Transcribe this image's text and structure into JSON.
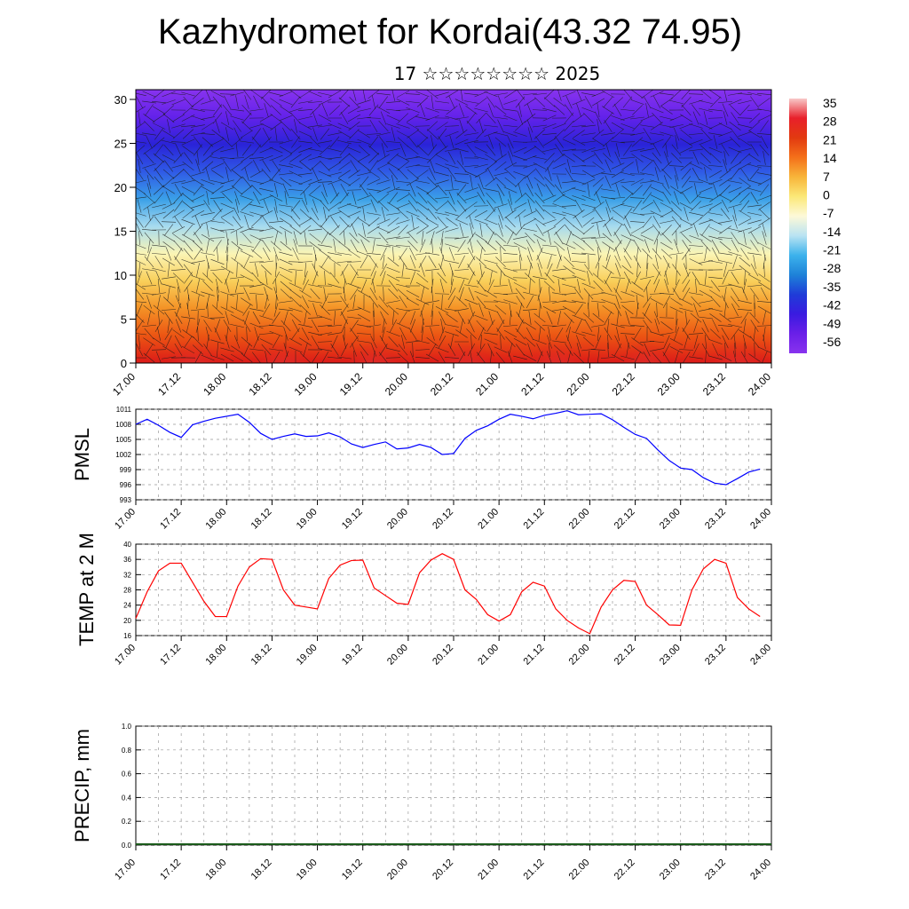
{
  "header": {
    "title": "Kazhydromet for Kordai(43.32 74.95)",
    "subtitle": "17 ☆☆☆☆☆☆☆☆ 2025"
  },
  "x_tick_labels": [
    "17.00",
    "17.12",
    "18.00",
    "18.12",
    "19.00",
    "19.12",
    "20.00",
    "20.12",
    "21.00",
    "21.12",
    "22.00",
    "22.12",
    "23.00",
    "23.12",
    "24.00"
  ],
  "chart_data": [
    {
      "type": "heatmap",
      "description_kind": "temperature cross-section with wind barbs",
      "yticks": [
        0,
        5,
        10,
        15,
        20,
        25,
        30
      ],
      "ylim": [
        0,
        30
      ],
      "colorbar": {
        "labels": [
          "35",
          "28",
          "21",
          "14",
          "7",
          "0",
          "-7",
          "-14",
          "-21",
          "-28",
          "-35",
          "-42",
          "-49",
          "-56"
        ],
        "colors": [
          "#f8c8c8",
          "#e8202a",
          "#e23a10",
          "#f4701a",
          "#f8b53a",
          "#fbe878",
          "#fdf9d8",
          "#b9e3f2",
          "#3cb2ec",
          "#1e82d8",
          "#1f3cd8",
          "#3a1be0",
          "#6a1fe8",
          "#8833ee"
        ]
      },
      "stripe_colors_top_to_bottom": [
        "#8833ee",
        "#6322ea",
        "#2a23d8",
        "#2f5ae6",
        "#3aa0e8",
        "#a7dbef",
        "#fbf5b5",
        "#f9cf5a",
        "#f49226",
        "#ec5513",
        "#dc1a18"
      ]
    },
    {
      "type": "line",
      "ylabel": "PMSL",
      "ylim": [
        993,
        1011
      ],
      "yticks": [
        993,
        996,
        999,
        1002,
        1005,
        1008,
        1011
      ],
      "x_range": [
        0,
        168
      ],
      "x_hours": [
        0,
        3,
        6,
        9,
        12,
        15,
        18,
        21,
        24,
        27,
        30,
        33,
        36,
        39,
        42,
        45,
        48,
        51,
        54,
        57,
        60,
        63,
        66,
        69,
        72,
        75,
        78,
        81,
        84,
        87,
        90,
        93,
        96,
        99,
        102,
        105,
        108,
        111,
        114,
        117,
        120,
        123,
        126,
        129,
        132,
        135,
        138,
        141,
        144,
        147,
        150,
        153,
        156,
        159,
        162,
        165
      ],
      "series": [
        {
          "color": "#0000ff",
          "values": [
            1008.0,
            1009.0,
            1007.8,
            1006.4,
            1005.4,
            1007.9,
            1008.6,
            1009.2,
            1009.6,
            1010.0,
            1008.4,
            1006.2,
            1005.0,
            1005.6,
            1006.1,
            1005.6,
            1005.7,
            1006.3,
            1005.5,
            1004.1,
            1003.4,
            1004.0,
            1004.5,
            1003.1,
            1003.3,
            1004.0,
            1003.4,
            1002.0,
            1002.2,
            1005.2,
            1006.8,
            1007.7,
            1009.0,
            1010.0,
            1009.6,
            1009.1,
            1009.8,
            1010.2,
            1010.7,
            1009.9,
            1010.0,
            1010.1,
            1008.9,
            1007.4,
            1006.0,
            1005.2,
            1002.9,
            1000.8,
            999.3,
            999.0,
            997.4,
            996.3,
            996.0,
            997.2,
            998.5,
            999.1
          ]
        }
      ]
    },
    {
      "type": "line",
      "ylabel": "TEMP at 2 M",
      "ylim": [
        16,
        40
      ],
      "yticks": [
        16,
        20,
        24,
        28,
        32,
        36,
        40
      ],
      "x_range": [
        0,
        168
      ],
      "x_hours": [
        0,
        3,
        6,
        9,
        12,
        15,
        18,
        21,
        24,
        27,
        30,
        33,
        36,
        39,
        42,
        45,
        48,
        51,
        54,
        57,
        60,
        63,
        66,
        69,
        72,
        75,
        78,
        81,
        84,
        87,
        90,
        93,
        96,
        99,
        102,
        105,
        108,
        111,
        114,
        117,
        120,
        123,
        126,
        129,
        132,
        135,
        138,
        141,
        144,
        147,
        150,
        153,
        156,
        159,
        162,
        165
      ],
      "series": [
        {
          "color": "#ff0000",
          "values": [
            20.5,
            27.5,
            33.0,
            35.0,
            35.0,
            30.0,
            25.0,
            21.0,
            21.0,
            29.0,
            34.0,
            36.2,
            36.0,
            28.0,
            24.0,
            23.5,
            23.0,
            31.0,
            34.5,
            35.7,
            35.8,
            28.5,
            26.5,
            24.5,
            24.2,
            32.5,
            35.8,
            37.5,
            36.0,
            28.0,
            25.5,
            21.5,
            19.8,
            21.5,
            27.5,
            30.0,
            29.0,
            23.0,
            20.0,
            18.0,
            16.5,
            23.5,
            28.0,
            30.5,
            30.2,
            24.0,
            21.5,
            18.8,
            18.7,
            28.0,
            33.5,
            36.0,
            35.0,
            26.0,
            23.0,
            21.0
          ]
        }
      ]
    },
    {
      "type": "bar",
      "ylabel": "PRECIP, mm",
      "ylim": [
        0.0,
        1.0
      ],
      "ytick_labels": [
        "0.0",
        "0.2",
        "0.4",
        "0.6",
        "0.8",
        "1.0"
      ],
      "yticks": [
        0.0,
        0.2,
        0.4,
        0.6,
        0.8,
        1.0
      ],
      "x_range": [
        0,
        168
      ],
      "values": []
    }
  ]
}
